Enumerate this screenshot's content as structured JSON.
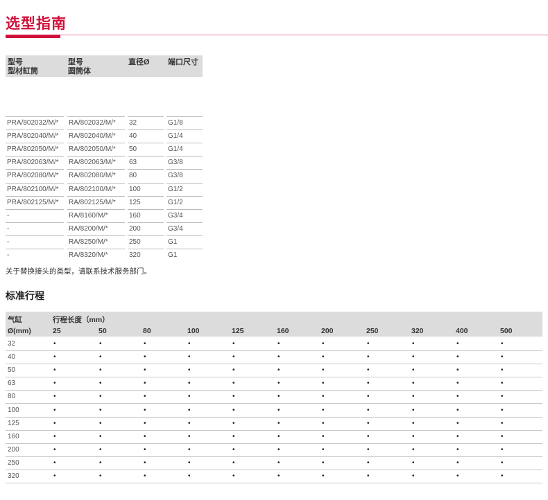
{
  "title": "选型指南",
  "table1": {
    "headers": [
      "型号\n型材缸筒",
      "型号\n圆筒体",
      "直径Ø",
      "端口尺寸"
    ],
    "rows": [
      [
        "PRA/802032/M/*",
        "RA/802032/M/*",
        "32",
        "G1/8"
      ],
      [
        "PRA/802040/M/*",
        "RA/802040/M/*",
        "40",
        "G1/4"
      ],
      [
        "PRA/802050/M/*",
        "RA/802050/M/*",
        "50",
        "G1/4"
      ],
      [
        "PRA/802063/M/*",
        "RA/802063/M/*",
        "63",
        "G3/8"
      ],
      [
        "PRA/802080/M/*",
        "RA/802080/M/*",
        "80",
        "G3/8"
      ],
      [
        "PRA/802100/M/*",
        "RA/802100/M/*",
        "100",
        "G1/2"
      ],
      [
        "PRA/802125/M/*",
        "RA/802125/M/*",
        "125",
        "G1/2"
      ],
      [
        "-",
        "RA/8160/M/*",
        "160",
        "G3/4"
      ],
      [
        "-",
        "RA/8200/M/*",
        "200",
        "G3/4"
      ],
      [
        "-",
        "RA/8250/M/*",
        "250",
        "G1"
      ],
      [
        "-",
        "RA/8320/M/*",
        "320",
        "G1"
      ]
    ]
  },
  "note": "关于替换接头的类型，请联系技术服务部门。",
  "section2_title": "标准行程",
  "table2": {
    "corner_top": "气缸",
    "corner_bottom": "Ø(mm)",
    "stroke_header": "行程长度（mm）",
    "strokes": [
      "25",
      "50",
      "80",
      "100",
      "125",
      "160",
      "200",
      "250",
      "320",
      "400",
      "500"
    ],
    "bore_rows": [
      "32",
      "40",
      "50",
      "63",
      "80",
      "100",
      "125",
      "160",
      "200",
      "250",
      "320"
    ],
    "dot": "•"
  }
}
